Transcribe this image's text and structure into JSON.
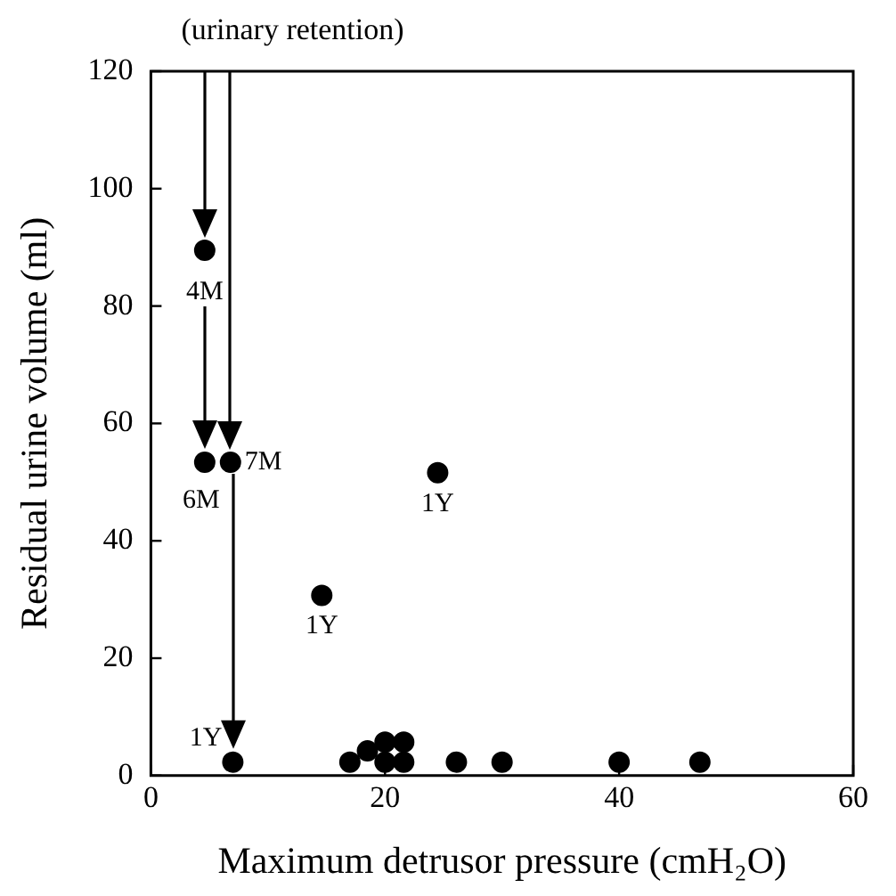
{
  "chart_data": {
    "type": "scatter",
    "xlabel": "Maximum detrusor pressure (cmH₂O)",
    "ylabel": "Residual urine volume (ml)",
    "x": [
      4.6,
      4.6,
      6.8,
      24.5,
      14.6,
      7.0,
      17.0,
      18.5,
      20.0,
      20.0,
      21.6,
      21.6,
      26.1,
      30.0,
      40.0,
      46.9
    ],
    "series": [
      {
        "color": "#000000",
        "values": [
          89.5,
          53.4,
          53.4,
          51.6,
          30.7,
          2.3,
          2.3,
          4.2,
          2.3,
          5.7,
          2.3,
          5.7,
          2.3,
          2.3,
          2.3,
          2.3
        ]
      }
    ],
    "xlim": [
      0,
      60
    ],
    "xticks": [
      0,
      20,
      40,
      60
    ],
    "ylim": [
      0,
      120
    ],
    "yticks": [
      0,
      20,
      40,
      60,
      80,
      100,
      120
    ],
    "grid": false,
    "legend": false,
    "marker": "circle",
    "annotations": [
      "(urinary retention)",
      {
        "text": "4M",
        "x": 4.6,
        "y": 89.5
      },
      {
        "text": "6M",
        "x": 4.6,
        "y": 53.4
      },
      {
        "text": "7M",
        "x": 6.8,
        "y": 53.4
      },
      {
        "text": "1Y",
        "x": 24.5,
        "y": 51.6
      },
      {
        "text": "1Y",
        "x": 14.6,
        "y": 30.7
      },
      {
        "text": "1Y",
        "x": 7.0,
        "y": 2.3
      }
    ]
  }
}
